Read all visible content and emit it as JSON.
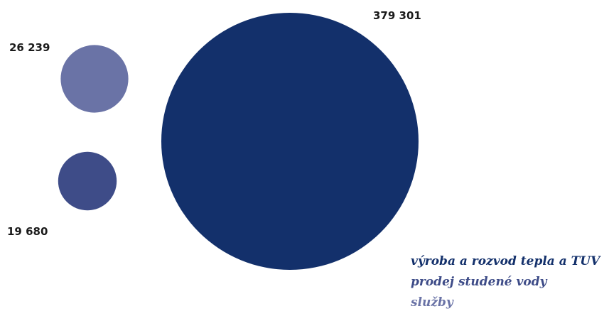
{
  "chart_data": {
    "type": "bubble",
    "series": [
      {
        "name": "výroba a rozvod tepla a TUV",
        "value": 379301,
        "value_label": "379 301",
        "color": "#13306b"
      },
      {
        "name": "prodej studené vody",
        "value": 19680,
        "value_label": "19 680",
        "color": "#3e4c88"
      },
      {
        "name": "služby",
        "value": 26239,
        "value_label": "26 239",
        "color": "#6a73a6"
      }
    ],
    "legend_position": "bottom-right"
  }
}
